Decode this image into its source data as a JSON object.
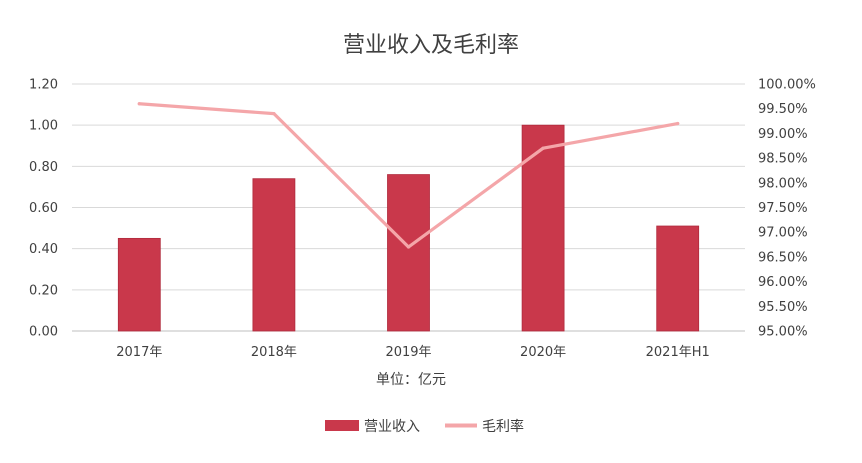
{
  "chart_data": {
    "type": "bar",
    "title": "营业收入及毛利率",
    "xlabel": "单位：亿元",
    "categories": [
      "2017年",
      "2018年",
      "2019年",
      "2020年",
      "2021年H1"
    ],
    "series": [
      {
        "name": "营业收入",
        "type": "bar",
        "axis": "left",
        "color": "#C9384B",
        "values": [
          0.45,
          0.74,
          0.76,
          1.0,
          0.51
        ]
      },
      {
        "name": "毛利率",
        "type": "line",
        "axis": "right",
        "color": "#F4A6A9",
        "values": [
          99.6,
          99.4,
          96.7,
          98.7,
          99.2
        ]
      }
    ],
    "y_left": {
      "ylim": [
        0,
        1.2
      ],
      "ticks": [
        "0.00",
        "0.20",
        "0.40",
        "0.60",
        "0.80",
        "1.00",
        "1.20"
      ]
    },
    "y_right": {
      "ylim": [
        95,
        100
      ],
      "ticks": [
        "95.00%",
        "95.50%",
        "96.00%",
        "96.50%",
        "97.00%",
        "97.50%",
        "98.00%",
        "98.50%",
        "99.00%",
        "99.50%",
        "100.00%"
      ]
    },
    "grid": true,
    "legend_position": "bottom"
  }
}
